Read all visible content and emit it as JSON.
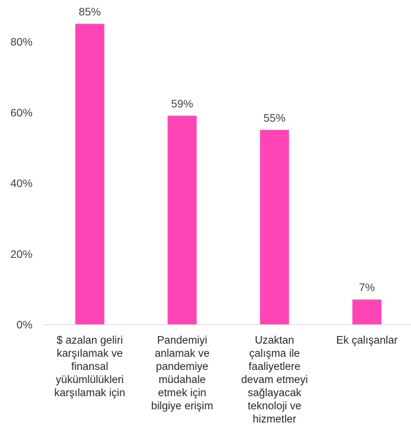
{
  "chart_data": {
    "type": "bar",
    "categories": [
      "$ azalan geliri karşılamak ve finansal yükümlülükleri karşılamak için",
      "Pandemiyi anlamak ve pandemiye müdahale etmek için bilgiye erişim",
      "Uzaktan çalışma ile faaliyetlere devam etmeyi sağlayacak teknoloji ve hizmetler",
      "Ek çalışanlar"
    ],
    "category_lines": [
      [
        "$ azalan geliri",
        "karşılamak ve",
        "finansal",
        "yükümlülükleri",
        "karşılamak için"
      ],
      [
        "Pandemiyi",
        "anlamak ve",
        "pandemiye",
        "müdahale",
        "etmek için",
        "bilgiye erişim"
      ],
      [
        "Uzaktan",
        "çalışma ile",
        "faaliyetlere",
        "devam etmeyi",
        "sağlayacak",
        "teknoloji ve",
        "hizmetler"
      ],
      [
        "Ek çalışanlar"
      ]
    ],
    "values": [
      85,
      59,
      55,
      7
    ],
    "data_labels": [
      "85%",
      "59%",
      "55%",
      "7%"
    ],
    "yticks": [
      0,
      20,
      40,
      60,
      80
    ],
    "ytick_labels": [
      "0%",
      "20%",
      "40%",
      "60%",
      "80%"
    ],
    "ylim": [
      0,
      88
    ],
    "bar_color": "#ff45b5",
    "axis_color": "#d9d9d9",
    "grid": false,
    "title": "",
    "xlabel": "",
    "ylabel": ""
  }
}
